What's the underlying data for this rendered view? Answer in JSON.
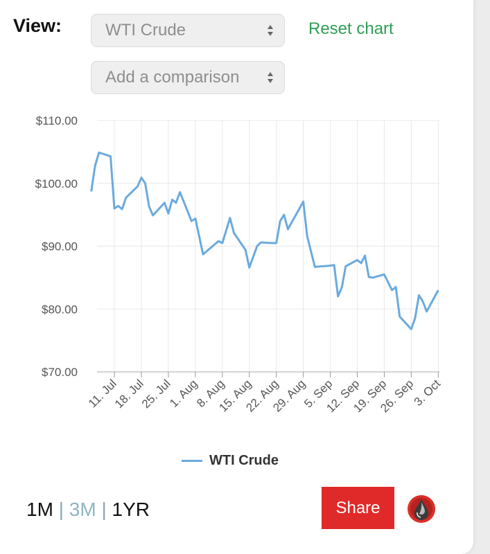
{
  "view_label": "View:",
  "selectors": {
    "commodity": "WTI Crude",
    "comparison_placeholder": "Add a comparison"
  },
  "reset_label": "Reset chart",
  "legend_label": "WTI Crude",
  "range": {
    "one_month": "1M",
    "three_month": "3M",
    "one_year": "1YR",
    "separator": "|",
    "active": "3M"
  },
  "share_label": "Share",
  "icons": {
    "logo": "oil-drop-icon",
    "select_arrows": "up-down-arrows-icon"
  },
  "colors": {
    "line": "#6aaade",
    "reset": "#2e9e55",
    "share_bg": "#e02a2a",
    "grid": "#e8e8e8"
  },
  "chart_data": {
    "type": "line",
    "title": "",
    "xlabel": "",
    "ylabel": "",
    "ylim": [
      70,
      110
    ],
    "y_ticks": [
      "$70.00",
      "$80.00",
      "$90.00",
      "$100.00",
      "$110.00"
    ],
    "x_tick_labels": [
      "11. Jul",
      "18. Jul",
      "25. Jul",
      "1. Aug",
      "8. Aug",
      "15. Aug",
      "22. Aug",
      "29. Aug",
      "5. Sep",
      "12. Sep",
      "19. Sep",
      "26. Sep",
      "3. Oct"
    ],
    "legend_position": "bottom",
    "grid": true,
    "series": [
      {
        "name": "WTI Crude",
        "points": [
          [
            "2022-07-05",
            98.7
          ],
          [
            "2022-07-06",
            102.8
          ],
          [
            "2022-07-07",
            104.9
          ],
          [
            "2022-07-10",
            104.3
          ],
          [
            "2022-07-11",
            96.0
          ],
          [
            "2022-07-12",
            96.4
          ],
          [
            "2022-07-13",
            95.9
          ],
          [
            "2022-07-14",
            97.7
          ],
          [
            "2022-07-17",
            99.5
          ],
          [
            "2022-07-18",
            100.9
          ],
          [
            "2022-07-19",
            100.0
          ],
          [
            "2022-07-20",
            96.3
          ],
          [
            "2022-07-21",
            94.9
          ],
          [
            "2022-07-24",
            96.9
          ],
          [
            "2022-07-25",
            95.2
          ],
          [
            "2022-07-26",
            97.4
          ],
          [
            "2022-07-27",
            96.9
          ],
          [
            "2022-07-28",
            98.6
          ],
          [
            "2022-07-31",
            94.0
          ],
          [
            "2022-08-01",
            94.4
          ],
          [
            "2022-08-03",
            88.7
          ],
          [
            "2022-08-07",
            90.8
          ],
          [
            "2022-08-08",
            90.5
          ],
          [
            "2022-08-10",
            94.5
          ],
          [
            "2022-08-11",
            92.1
          ],
          [
            "2022-08-14",
            89.4
          ],
          [
            "2022-08-15",
            86.6
          ],
          [
            "2022-08-17",
            90.0
          ],
          [
            "2022-08-18",
            90.6
          ],
          [
            "2022-08-21",
            90.5
          ],
          [
            "2022-08-22",
            90.5
          ],
          [
            "2022-08-23",
            94.0
          ],
          [
            "2022-08-24",
            95.0
          ],
          [
            "2022-08-25",
            92.7
          ],
          [
            "2022-08-28",
            96.0
          ],
          [
            "2022-08-29",
            97.1
          ],
          [
            "2022-08-30",
            91.6
          ],
          [
            "2022-09-01",
            86.7
          ],
          [
            "2022-09-05",
            86.9
          ],
          [
            "2022-09-06",
            87.0
          ],
          [
            "2022-09-07",
            82.0
          ],
          [
            "2022-09-08",
            83.5
          ],
          [
            "2022-09-09",
            86.8
          ],
          [
            "2022-09-12",
            87.8
          ],
          [
            "2022-09-13",
            87.3
          ],
          [
            "2022-09-14",
            88.5
          ],
          [
            "2022-09-15",
            85.1
          ],
          [
            "2022-09-16",
            85.0
          ],
          [
            "2022-09-19",
            85.5
          ],
          [
            "2022-09-21",
            83.0
          ],
          [
            "2022-09-22",
            83.5
          ],
          [
            "2022-09-23",
            78.8
          ],
          [
            "2022-09-26",
            76.8
          ],
          [
            "2022-09-27",
            78.6
          ],
          [
            "2022-09-28",
            82.2
          ],
          [
            "2022-09-29",
            81.2
          ],
          [
            "2022-09-30",
            79.6
          ],
          [
            "2022-10-03",
            83.0
          ]
        ]
      }
    ]
  }
}
